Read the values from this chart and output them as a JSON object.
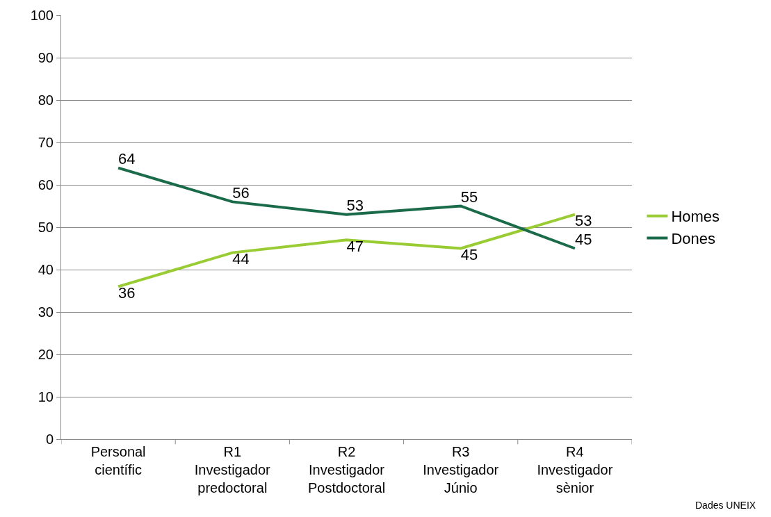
{
  "chart_data": {
    "type": "line",
    "categories": [
      "Personal\ncientífic",
      "R1\nInvestigador\npredoctoral",
      "R2\nInvestigador\nPostdoctoral",
      "R3\nInvestigador\nJúnio",
      "R4\nInvestigador\nsènior"
    ],
    "series": [
      {
        "name": "Homes",
        "color": "#99cc33",
        "values": [
          36,
          44,
          47,
          45,
          53
        ]
      },
      {
        "name": "Dones",
        "color": "#1a6b4a",
        "values": [
          64,
          56,
          53,
          55,
          45
        ]
      }
    ],
    "ylim": [
      0,
      100
    ],
    "yticks": [
      0,
      10,
      20,
      30,
      40,
      50,
      60,
      70,
      80,
      90,
      100
    ],
    "grid": "y",
    "legend": "right",
    "data_labels": true,
    "marker": "none",
    "line_style": "solid",
    "annotations": [
      "Dades UNEIX"
    ]
  }
}
